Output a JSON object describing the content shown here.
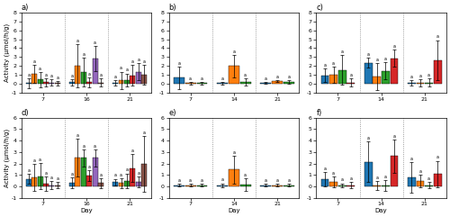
{
  "chart_data": [
    {
      "type": "bar",
      "title": "a)",
      "y_label": "Activity (μmol/h/g)",
      "categories": [
        "7",
        "16",
        "21"
      ],
      "ylim": [
        -1,
        8
      ],
      "yticks": [
        -1,
        0,
        1,
        2,
        3,
        4,
        5,
        6,
        7,
        8
      ],
      "series": [
        {
          "values": [
            0.05,
            0.15,
            0.1
          ],
          "errors": [
            0.55,
            0.35,
            0.28
          ],
          "annotations": [
            "a",
            "a",
            "a"
          ]
        },
        {
          "values": [
            1.1,
            2.0,
            0.35
          ],
          "errors": [
            1.0,
            2.4,
            1.0
          ],
          "annotations": [
            "a",
            "a",
            "a"
          ]
        },
        {
          "values": [
            0.45,
            1.3,
            0.4
          ],
          "errors": [
            0.85,
            1.6,
            0.75
          ],
          "annotations": [
            "a",
            "a",
            "a"
          ]
        },
        {
          "values": [
            0.15,
            0.18,
            0.95
          ],
          "errors": [
            0.45,
            0.55,
            1.15
          ],
          "annotations": [
            "a",
            "a",
            "a"
          ]
        },
        {
          "values": [
            0.12,
            2.85,
            1.35
          ],
          "errors": [
            0.38,
            1.4,
            0.95
          ],
          "annotations": [
            "a",
            "a",
            "a"
          ]
        },
        {
          "values": [
            0.05,
            0.1,
            1.0
          ],
          "errors": [
            0.28,
            0.45,
            1.15
          ],
          "annotations": [
            "a",
            "a",
            "a"
          ]
        }
      ]
    },
    {
      "type": "bar",
      "title": "b)",
      "categories": [
        "7",
        "14",
        "21"
      ],
      "ylim": [
        -1,
        8
      ],
      "yticks": [
        -1,
        0,
        1,
        2,
        3,
        4,
        5,
        6,
        7,
        8
      ],
      "series": [
        {
          "values": [
            0.65,
            0.05,
            0.08
          ],
          "errors": [
            1.25,
            0.18,
            0.12
          ],
          "annotations": [
            "a",
            "a",
            "a"
          ]
        },
        {
          "values": [
            0.05,
            2.0,
            0.28
          ],
          "errors": [
            0.18,
            1.25,
            0.12
          ],
          "annotations": [
            "a",
            "a",
            "a"
          ]
        },
        {
          "values": [
            0.05,
            0.18,
            0.18
          ],
          "errors": [
            0.12,
            0.38,
            0.18
          ],
          "annotations": [
            "a",
            "a",
            "a"
          ]
        }
      ]
    },
    {
      "type": "bar",
      "title": "c)",
      "categories": [
        "7",
        "14",
        "21"
      ],
      "ylim": [
        -1,
        8
      ],
      "yticks": [
        -1,
        0,
        1,
        2,
        3,
        4,
        5,
        6,
        7,
        8
      ],
      "series": [
        {
          "values": [
            0.95,
            2.35,
            0.1
          ],
          "errors": [
            0.75,
            0.55,
            0.28
          ],
          "annotations": [
            "a",
            "a",
            "a"
          ]
        },
        {
          "values": [
            1.0,
            0.8,
            0.1
          ],
          "errors": [
            0.95,
            1.55,
            0.38
          ],
          "annotations": [
            "a",
            "a",
            "a"
          ]
        },
        {
          "values": [
            1.55,
            1.45,
            0.1
          ],
          "errors": [
            1.65,
            0.95,
            0.45
          ],
          "annotations": [
            "a",
            "a",
            "a"
          ]
        },
        {
          "values": [
            0.1,
            2.85,
            2.65
          ],
          "errors": [
            0.45,
            0.95,
            2.25
          ],
          "annotations": [
            "a",
            "a",
            "a"
          ]
        }
      ]
    },
    {
      "type": "bar",
      "title": "d)",
      "y_label": "Activity (μmol/h/g)",
      "x_label": "Day",
      "categories": [
        "7",
        "16",
        "21"
      ],
      "ylim": [
        -1,
        6
      ],
      "yticks": [
        -1,
        0,
        1,
        2,
        3,
        4,
        5,
        6
      ],
      "series": [
        {
          "values": [
            0.65,
            0.3,
            0.38
          ],
          "errors": [
            0.45,
            0.45,
            0.28
          ],
          "annotations": [
            "a",
            "a",
            "a"
          ]
        },
        {
          "values": [
            0.78,
            2.5,
            0.28
          ],
          "errors": [
            1.15,
            1.65,
            0.45
          ],
          "annotations": [
            "a",
            "a",
            "a"
          ]
        },
        {
          "values": [
            0.88,
            2.5,
            0.48
          ],
          "errors": [
            1.15,
            0.75,
            0.65
          ],
          "annotations": [
            "a",
            "a",
            "a"
          ]
        },
        {
          "values": [
            0.22,
            0.95,
            1.6
          ],
          "errors": [
            0.65,
            0.45,
            1.25
          ],
          "annotations": [
            "a",
            "a",
            "a"
          ]
        },
        {
          "values": [
            0.1,
            2.5,
            0.38
          ],
          "errors": [
            0.38,
            0.75,
            0.45
          ],
          "annotations": [
            "a",
            "a",
            "a"
          ]
        },
        {
          "values": [
            0.1,
            0.28,
            1.95
          ],
          "errors": [
            0.28,
            0.45,
            2.45
          ],
          "annotations": [
            "a",
            "a",
            "a"
          ]
        }
      ]
    },
    {
      "type": "bar",
      "title": "e)",
      "x_label": "Day",
      "categories": [
        "7",
        "14",
        "21"
      ],
      "ylim": [
        -1,
        6
      ],
      "yticks": [
        -1,
        0,
        1,
        2,
        3,
        4,
        5,
        6
      ],
      "series": [
        {
          "values": [
            0.08,
            0.08,
            0.08
          ],
          "errors": [
            0.12,
            0.18,
            0.12
          ],
          "annotations": [
            "a",
            "a",
            "a"
          ]
        },
        {
          "values": [
            0.08,
            1.45,
            0.08
          ],
          "errors": [
            0.12,
            1.25,
            0.12
          ],
          "annotations": [
            "a",
            "a",
            "a"
          ]
        },
        {
          "values": [
            0.08,
            0.18,
            0.08
          ],
          "errors": [
            0.12,
            0.55,
            0.12
          ],
          "annotations": [
            "a",
            "a",
            "a"
          ]
        }
      ]
    },
    {
      "type": "bar",
      "title": "f)",
      "x_label": "Day",
      "categories": [
        "7",
        "14",
        "21"
      ],
      "ylim": [
        -1,
        6
      ],
      "yticks": [
        -1,
        0,
        1,
        2,
        3,
        4,
        5,
        6
      ],
      "series": [
        {
          "values": [
            0.62,
            2.15,
            0.78
          ],
          "errors": [
            0.65,
            1.75,
            1.35
          ],
          "annotations": [
            "a",
            "a",
            "a"
          ]
        },
        {
          "values": [
            0.38,
            0.08,
            0.48
          ],
          "errors": [
            0.48,
            0.38,
            0.55
          ],
          "annotations": [
            "a",
            "a",
            "a"
          ]
        },
        {
          "values": [
            0.08,
            0.08,
            0.08
          ],
          "errors": [
            0.18,
            0.45,
            0.28
          ],
          "annotations": [
            "a",
            "a",
            "a"
          ]
        },
        {
          "values": [
            0.08,
            2.65,
            1.08
          ],
          "errors": [
            0.28,
            1.45,
            1.15
          ],
          "annotations": [
            "a",
            "a",
            "a"
          ]
        }
      ]
    }
  ]
}
